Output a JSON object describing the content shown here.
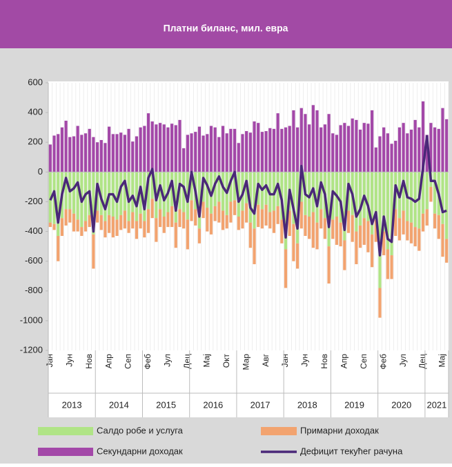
{
  "chart_data": {
    "type": "bar",
    "title": "Платни биланс, мил. евра",
    "categories": [
      "Јан",
      null,
      null,
      null,
      null,
      "Јун",
      null,
      null,
      null,
      null,
      "Нов",
      null,
      null,
      null,
      null,
      "Апр",
      null,
      null,
      null,
      null,
      "Сеп",
      null,
      null,
      null,
      null,
      "Феб",
      null,
      null,
      null,
      null,
      "Јул",
      null,
      null,
      null,
      null,
      "Дец",
      null,
      null,
      null,
      null,
      "Мај",
      null,
      null,
      null,
      null,
      "Окт",
      null,
      null,
      null,
      null,
      "Мар",
      null,
      null,
      null,
      null,
      "Авг",
      null,
      null,
      null,
      null,
      "Јан",
      null,
      null,
      null,
      null,
      "Јун",
      null,
      null,
      null,
      null,
      "Нов",
      null,
      null,
      null,
      null,
      "Апр",
      null,
      null,
      null,
      null,
      "Сеп",
      null,
      null,
      null,
      null,
      "Феб",
      null,
      null,
      null,
      null,
      "Јул",
      null,
      null,
      null,
      null,
      "Дец",
      null,
      null,
      null,
      null,
      "Мај",
      null
    ],
    "year_labels": [
      "2013",
      "2014",
      "2015",
      "2016",
      "2017",
      "2018",
      "2019",
      "2020",
      "2021"
    ],
    "series": [
      {
        "name": "Салдо робе и услуга",
        "color": "#b0e486",
        "type": "bar",
        "values": [
          -340,
          -350,
          -430,
          -310,
          -250,
          -250,
          -280,
          -320,
          -370,
          -330,
          -290,
          -420,
          -260,
          -290,
          -330,
          -290,
          -300,
          -320,
          -290,
          -260,
          -330,
          -270,
          -330,
          -280,
          -330,
          -250,
          -180,
          -310,
          -250,
          -300,
          -270,
          -230,
          -340,
          -250,
          -270,
          -320,
          -190,
          -250,
          -380,
          -200,
          -240,
          -280,
          -230,
          -200,
          -260,
          -290,
          -200,
          -190,
          -300,
          -260,
          -210,
          -340,
          -380,
          -220,
          -250,
          -220,
          -270,
          -260,
          -230,
          -320,
          -520,
          -260,
          -350,
          -480,
          -200,
          -290,
          -300,
          -270,
          -340,
          -250,
          -310,
          -500,
          -320,
          -300,
          -340,
          -460,
          -260,
          -290,
          -400,
          -360,
          -310,
          -330,
          -420,
          -320,
          -780,
          -400,
          -520,
          -560,
          -250,
          -310,
          -260,
          -330,
          -340,
          -370,
          -380,
          -280,
          -250,
          -100,
          -280,
          -290,
          -350,
          -450
        ]
      },
      {
        "name": "Примарни доходак",
        "color": "#f2a36f",
        "type": "bar",
        "values": [
          -30,
          -40,
          -170,
          -120,
          -110,
          -90,
          -120,
          -80,
          -60,
          -70,
          -80,
          -230,
          -80,
          -100,
          -110,
          -120,
          -140,
          -110,
          -100,
          -120,
          -80,
          -110,
          -120,
          -100,
          -110,
          -160,
          -130,
          -160,
          -120,
          -110,
          -100,
          -140,
          -170,
          -120,
          -110,
          -200,
          -140,
          -110,
          -100,
          -110,
          -160,
          -140,
          -100,
          -140,
          -130,
          -90,
          -140,
          -100,
          -90,
          -120,
          -130,
          -170,
          -240,
          -150,
          -130,
          -140,
          -110,
          -150,
          -120,
          -160,
          -260,
          -170,
          -250,
          -170,
          -180,
          -140,
          -150,
          -240,
          -180,
          -130,
          -140,
          -250,
          -130,
          -190,
          -160,
          -200,
          -150,
          -180,
          -220,
          -150,
          -180,
          -210,
          -220,
          -150,
          -200,
          -160,
          -200,
          -160,
          -180,
          -150,
          -160,
          -130,
          -140,
          -130,
          -150,
          -120,
          -110,
          -100,
          -100,
          -160,
          -220,
          -160
        ]
      },
      {
        "name": "Секундарни доходак",
        "color": "#a348a8",
        "type": "bar",
        "values": [
          185,
          245,
          255,
          300,
          345,
          235,
          240,
          310,
          250,
          260,
          290,
          235,
          200,
          215,
          195,
          305,
          255,
          255,
          265,
          250,
          290,
          205,
          240,
          300,
          310,
          395,
          340,
          320,
          330,
          320,
          300,
          325,
          315,
          350,
          160,
          250,
          260,
          270,
          305,
          245,
          255,
          310,
          300,
          235,
          310,
          260,
          290,
          290,
          195,
          255,
          275,
          265,
          340,
          330,
          270,
          275,
          295,
          290,
          395,
          290,
          300,
          310,
          415,
          300,
          430,
          390,
          320,
          450,
          415,
          300,
          320,
          390,
          260,
          250,
          315,
          330,
          310,
          360,
          350,
          285,
          330,
          325,
          415,
          165,
          240,
          300,
          260,
          190,
          210,
          300,
          330,
          260,
          285,
          350,
          300,
          475,
          250,
          330,
          300,
          290,
          430,
          355
        ]
      },
      {
        "name": "Дефицит текућег рачуна",
        "color": "#4a2878",
        "type": "line",
        "values": [
          -190,
          -130,
          -340,
          -150,
          -40,
          -130,
          -110,
          -70,
          -200,
          -150,
          -130,
          -400,
          -80,
          -180,
          -250,
          -150,
          -150,
          -200,
          -100,
          -60,
          -200,
          -160,
          -230,
          -100,
          -250,
          -40,
          20,
          -190,
          -90,
          -190,
          -140,
          -60,
          -260,
          -80,
          -100,
          -200,
          0,
          -130,
          -300,
          -40,
          -90,
          -160,
          -80,
          -30,
          -100,
          -140,
          -60,
          0,
          -200,
          -150,
          -60,
          -240,
          -280,
          -80,
          -120,
          -90,
          -150,
          -150,
          -80,
          -190,
          -440,
          -120,
          -250,
          -380,
          40,
          -150,
          -170,
          -110,
          -230,
          -70,
          -150,
          -370,
          -130,
          -160,
          -200,
          -390,
          -80,
          -150,
          -300,
          -250,
          -160,
          -230,
          -350,
          -270,
          -560,
          -300,
          -450,
          -470,
          -90,
          -170,
          -60,
          -170,
          -180,
          -200,
          -180,
          30,
          240,
          -60,
          -60,
          -150,
          -270,
          -260
        ]
      }
    ],
    "ylim": [
      -1200,
      600
    ],
    "yticks": [
      600,
      400,
      200,
      0,
      -200,
      -400,
      -600,
      -800,
      -1000,
      -1200
    ],
    "grid": true
  }
}
